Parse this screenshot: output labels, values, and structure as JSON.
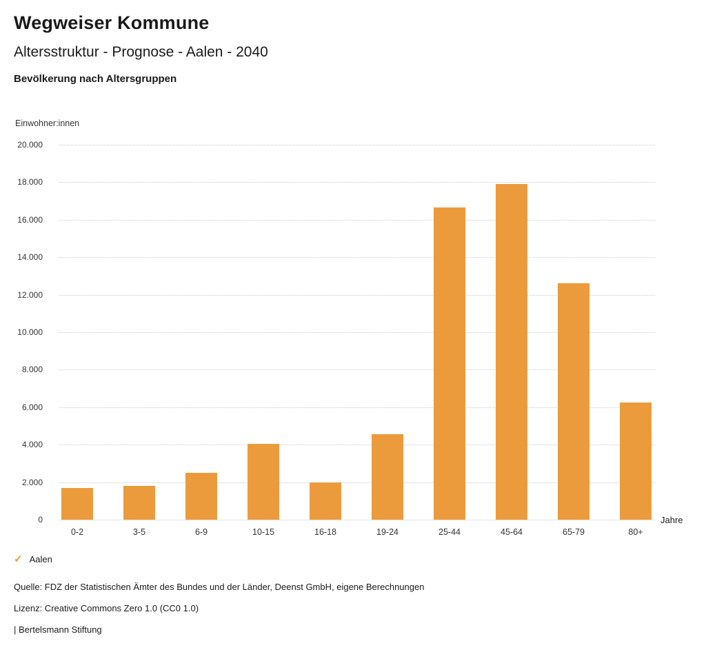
{
  "header": {
    "title": "Wegweiser Kommune",
    "subtitle": "Altersstruktur - Prognose - Aalen - 2040",
    "section_title": "Bevölkerung nach Altersgruppen"
  },
  "chart_data": {
    "type": "bar",
    "title": "Bevölkerung nach Altersgruppen",
    "xlabel": "Jahre",
    "ylabel": "Einwohner:innen",
    "categories": [
      "0-2",
      "3-5",
      "6-9",
      "10-15",
      "16-18",
      "19-24",
      "25-44",
      "45-64",
      "65-79",
      "80+"
    ],
    "values": [
      1700,
      1800,
      2500,
      4050,
      2000,
      4550,
      16650,
      17900,
      12600,
      6250
    ],
    "series_name": "Aalen",
    "ylim": [
      0,
      20000
    ],
    "ytick_labels": [
      "0",
      "2.000",
      "4.000",
      "6.000",
      "8.000",
      "10.000",
      "12.000",
      "14.000",
      "16.000",
      "18.000",
      "20.000"
    ],
    "grid": "horizontal-dotted",
    "legend_position": "bottom-left",
    "bar_color": "#EC9B3C"
  },
  "legend": {
    "check_icon": "✓",
    "label": "Aalen",
    "color": "#EC9B3C"
  },
  "footer": {
    "source": "Quelle: FDZ der Statistischen Ämter des Bundes und der Länder, Deenst GmbH, eigene Berechnungen",
    "license": "Lizenz: Creative Commons Zero 1.0 (CC0 1.0)",
    "attribution": "| Bertelsmann Stiftung"
  }
}
